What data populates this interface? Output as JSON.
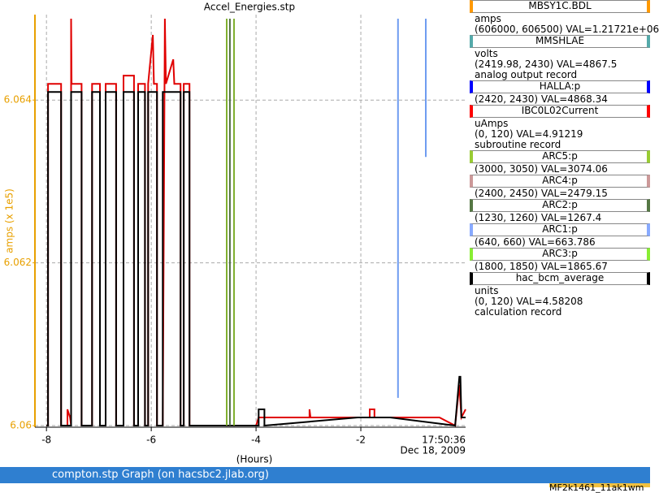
{
  "chart_data": {
    "type": "line",
    "title": "Accel_Energies.stp",
    "ylabel": "amps (x 1e5)",
    "xlabel": "(Hours)",
    "time_label": "17:50:36",
    "date_label": "Dec 18, 2009",
    "xlim": [
      -8.22,
      0.0
    ],
    "ylim": [
      6.05998,
      6.06505
    ],
    "xticks": [
      -8,
      -6,
      -4,
      -2
    ],
    "yticks": [
      6.06,
      6.062,
      6.064
    ],
    "grid": true,
    "axis_color": "#e8a000",
    "series": [
      {
        "color": "#e00000",
        "x": [
          -8.0,
          -7.97,
          -7.97,
          -7.72,
          -7.72,
          -7.6,
          -7.6,
          -7.55,
          -7.53,
          -7.53,
          -7.52,
          -7.33,
          -7.33,
          -7.13,
          -7.13,
          -6.98,
          -6.98,
          -6.87,
          -6.87,
          -6.67,
          -6.67,
          -6.53,
          -6.53,
          -6.33,
          -6.33,
          -6.25,
          -6.25,
          -6.12,
          -6.12,
          -6.06,
          -6.06,
          -5.97,
          -5.95,
          -5.89,
          -5.89,
          -5.78,
          -5.74,
          -5.72,
          -5.58,
          -5.56,
          -5.44,
          -5.44,
          -5.38,
          -5.38,
          -5.27,
          -5.27,
          -4.0,
          -3.95,
          -3.84,
          -2.98,
          -2.98,
          -2.96,
          -1.83,
          -1.83,
          -1.74,
          -1.74,
          -0.5,
          -0.2,
          -0.12,
          -0.08,
          0.0
        ],
        "values": [
          6.06,
          6.06,
          6.0642,
          6.0642,
          6.06,
          6.06,
          6.0602,
          6.0601,
          6.06,
          6.065,
          6.0642,
          6.0642,
          6.06,
          6.06,
          6.0642,
          6.0642,
          6.06,
          6.06,
          6.0642,
          6.0642,
          6.06,
          6.06,
          6.0643,
          6.0643,
          6.06,
          6.06,
          6.0642,
          6.0642,
          6.06,
          6.06,
          6.0642,
          6.0648,
          6.0642,
          6.0642,
          6.06,
          6.06,
          6.065,
          6.0642,
          6.0645,
          6.0642,
          6.0642,
          6.06,
          6.06,
          6.0642,
          6.0642,
          6.06,
          6.06,
          6.0601,
          6.0601,
          6.0601,
          6.0602,
          6.0601,
          6.0601,
          6.0602,
          6.0602,
          6.0601,
          6.0601,
          6.06,
          6.0605,
          6.0601,
          6.0602
        ]
      },
      {
        "color": "#000000",
        "x": [
          -8.0,
          -7.97,
          -7.97,
          -7.72,
          -7.72,
          -7.53,
          -7.53,
          -7.33,
          -7.33,
          -7.13,
          -7.13,
          -6.98,
          -6.98,
          -6.87,
          -6.87,
          -6.67,
          -6.67,
          -6.53,
          -6.53,
          -6.33,
          -6.33,
          -6.25,
          -6.25,
          -6.12,
          -6.12,
          -6.06,
          -6.06,
          -5.89,
          -5.89,
          -5.78,
          -5.78,
          -5.44,
          -5.44,
          -5.38,
          -5.38,
          -5.27,
          -5.27,
          -3.95,
          -3.95,
          -3.84,
          -3.84,
          -2.06,
          -1.44,
          -0.2,
          -0.12,
          -0.1,
          -0.08,
          0.0
        ],
        "values": [
          6.06,
          6.06,
          6.0641,
          6.0641,
          6.06,
          6.06,
          6.0641,
          6.0641,
          6.06,
          6.06,
          6.0641,
          6.0641,
          6.06,
          6.06,
          6.0641,
          6.0641,
          6.06,
          6.06,
          6.0641,
          6.0641,
          6.06,
          6.06,
          6.0641,
          6.0641,
          6.06,
          6.06,
          6.0641,
          6.0641,
          6.06,
          6.06,
          6.0641,
          6.0641,
          6.06,
          6.06,
          6.0641,
          6.0641,
          6.06,
          6.06,
          6.0602,
          6.0602,
          6.06,
          6.0601,
          6.0601,
          6.06,
          6.0606,
          6.0606,
          6.0601,
          6.0601
        ]
      },
      {
        "color": "#80b030",
        "x": [
          -4.56,
          -4.56
        ],
        "values": [
          6.06,
          6.065
        ]
      },
      {
        "color": "#507040",
        "x": [
          -4.5,
          -4.5
        ],
        "values": [
          6.06,
          6.065
        ]
      },
      {
        "color": "#80b030",
        "x": [
          -4.42,
          -4.42
        ],
        "values": [
          6.06,
          6.065
        ]
      },
      {
        "color": "#6f9cf0",
        "x": [
          -1.29,
          -1.29
        ],
        "values": [
          6.06034,
          6.065
        ]
      },
      {
        "color": "#6f9cf0",
        "x": [
          -0.76,
          -0.76
        ],
        "values": [
          6.0633,
          6.065
        ]
      }
    ]
  },
  "legend_panel": [
    {
      "name": "MBSY1C.BDL",
      "color": "#ff9900",
      "lines": [
        "amps",
        "(606000, 606500) VAL=1.21721e+06"
      ]
    },
    {
      "name": "MMSHLAE",
      "color": "#55aaaa",
      "lines": [
        "volts",
        "(2419.98, 2430) VAL=4867.5",
        "analog output record"
      ]
    },
    {
      "name": "HALLA:p",
      "color": "#0000ff",
      "lines": [
        "(2420, 2430) VAL=4868.34"
      ]
    },
    {
      "name": "IBC0L02Current",
      "color": "#ff0000",
      "lines": [
        "uAmps",
        "(0, 120) VAL=4.91219",
        "subroutine record"
      ]
    },
    {
      "name": "ARC5:p",
      "color": "#99cc33",
      "lines": [
        "(3000, 3050) VAL=3074.06"
      ]
    },
    {
      "name": "ARC4:p",
      "color": "#cc9999",
      "lines": [
        "(2400, 2450) VAL=2479.15"
      ]
    },
    {
      "name": "ARC2:p",
      "color": "#557744",
      "lines": [
        "(1230, 1260) VAL=1267.4"
      ]
    },
    {
      "name": "ARC1:p",
      "color": "#88aaff",
      "lines": [
        "(640, 660) VAL=663.786"
      ]
    },
    {
      "name": "ARC3:p",
      "color": "#88ee33",
      "lines": [
        "(1800, 1850) VAL=1865.67"
      ]
    },
    {
      "name": "hac_bcm_average",
      "color": "#000000",
      "lines": [
        "units",
        "(0, 120) VAL=4.58208",
        "calculation record"
      ]
    }
  ],
  "window": {
    "title": "compton.stp Graph (on hacsbc2.jlab.org)",
    "tab": "MF2k1461_11ak1wm"
  }
}
